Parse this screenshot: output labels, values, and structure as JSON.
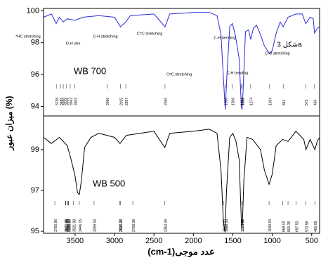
{
  "chart_data": [
    {
      "type": "line",
      "ylabel": "ميزان عبور (%)",
      "xlim": [
        3900,
        400
      ],
      "ylim": [
        93.4,
        100.15
      ],
      "yticks": [
        94,
        96,
        98,
        100
      ],
      "x": [
        3900,
        3800,
        3740,
        3700,
        3650,
        3600,
        3500,
        3400,
        3200,
        3000,
        2925,
        2857,
        2800,
        2500,
        2360,
        2300,
        2000,
        1800,
        1700,
        1650,
        1610,
        1596,
        1575,
        1540,
        1506,
        1470,
        1420,
        1392,
        1383,
        1370,
        1340,
        1300,
        1274,
        1240,
        1200,
        1150,
        1100,
        1034,
        1000,
        950,
        900,
        861,
        800,
        700,
        620,
        575,
        520,
        480,
        464,
        430,
        400
      ],
      "series": [
        {
          "name": "WB 700",
          "color": "#2b2bd9",
          "values": [
            99.6,
            99.8,
            99.2,
            99.6,
            99.3,
            99.5,
            99.4,
            99.6,
            99.7,
            99.6,
            99.0,
            99.3,
            99.7,
            99.8,
            99.0,
            99.8,
            99.9,
            99.9,
            99.7,
            98.5,
            95.0,
            93.8,
            96.0,
            99.0,
            99.2,
            98.5,
            97.0,
            94.0,
            93.8,
            95.0,
            98.7,
            98.8,
            98.2,
            98.9,
            99.1,
            98.5,
            97.8,
            97.3,
            97.5,
            98.6,
            99.3,
            99.0,
            99.6,
            99.8,
            99.8,
            99.2,
            99.6,
            99.5,
            98.6,
            98.9,
            99.0
          ]
        }
      ],
      "annotations": [
        "*HC stretching",
        "O-H stre",
        "C-H stretching",
        "C=C stretching",
        "C-H bending",
        "C=C stretching",
        "C-H bending",
        "C-O stretching",
        "شكل 3a"
      ],
      "peaks": [
        3685,
        3738,
        3650,
        3608,
        3562,
        3502,
        3096,
        2925,
        2857,
        2360,
        1596,
        1506,
        1392,
        1383,
        1274,
        1034,
        861,
        575,
        464
      ]
    },
    {
      "type": "line",
      "xlabel": "عدد موجى(cm-1)",
      "xlim": [
        3900,
        400
      ],
      "ylim": [
        94.9,
        100.65
      ],
      "yticks": [
        95,
        97,
        99
      ],
      "xticks": [
        3500,
        3000,
        2500,
        2000,
        1500,
        1000,
        500
      ],
      "x": [
        3900,
        3800,
        3700,
        3600,
        3550,
        3500,
        3470,
        3446,
        3420,
        3380,
        3300,
        3200,
        3000,
        2930,
        2850,
        2500,
        2363,
        2300,
        2000,
        1800,
        1700,
        1650,
        1620,
        1600,
        1580,
        1540,
        1500,
        1460,
        1420,
        1390,
        1380,
        1360,
        1320,
        1250,
        1150,
        1100,
        1040,
        1000,
        950,
        868,
        800,
        700,
        600,
        573,
        520,
        460,
        430,
        400
      ],
      "series": [
        {
          "name": "WB 500",
          "color": "#000000",
          "values": [
            99.6,
            99.3,
            99.6,
            99.2,
            98.5,
            97.7,
            96.9,
            96.8,
            97.5,
            99.1,
            99.6,
            99.8,
            99.6,
            99.3,
            99.7,
            99.9,
            99.1,
            99.8,
            99.9,
            100.0,
            99.8,
            98.0,
            95.5,
            94.95,
            97.0,
            99.6,
            99.8,
            99.4,
            98.5,
            95.3,
            95.3,
            97.5,
            99.6,
            99.5,
            99.0,
            98.0,
            97.3,
            97.8,
            99.2,
            99.5,
            99.4,
            99.9,
            99.5,
            99.0,
            99.5,
            99.0,
            99.4,
            99.6
          ]
        }
      ],
      "peaks": [
        {
          "value": 3598.5,
          "label": "3598.50"
        },
        {
          "value": 3588.64,
          "label": "3588.64"
        },
        {
          "value": 3756.86,
          "label": "3756.86"
        },
        {
          "value": 3617.08,
          "label": "3617.08"
        },
        {
          "value": 3581.88,
          "label": "3581.88"
        },
        {
          "value": 3621.98,
          "label": "3621.98"
        },
        {
          "value": 3521.98,
          "label": "3521.98"
        },
        {
          "value": 3446.15,
          "label": "3446.15"
        },
        {
          "value": 3259.53,
          "label": "3259.53"
        },
        {
          "value": 2932.22,
          "label": "2932.22"
        },
        {
          "value": 2926.04,
          "label": "2926.04"
        },
        {
          "value": 2768.38,
          "label": "2768.38"
        },
        {
          "value": 2363.09,
          "label": "2363.09"
        },
        {
          "value": 1619.63,
          "label": "1619.63"
        },
        {
          "value": 1588.15,
          "label": "1588.15"
        },
        {
          "value": 1385.21,
          "label": "1385.21"
        },
        {
          "value": 1385.4,
          "label": "1385.40"
        },
        {
          "value": 1040.64,
          "label": "1040.64"
        },
        {
          "value": 868.03,
          "label": "868.03"
        },
        {
          "value": 800.35,
          "label": "800.35"
        },
        {
          "value": 697.53,
          "label": "697.53"
        },
        {
          "value": 573.58,
          "label": "573.58"
        },
        {
          "value": 460.09,
          "label": "460.09"
        }
      ]
    }
  ]
}
